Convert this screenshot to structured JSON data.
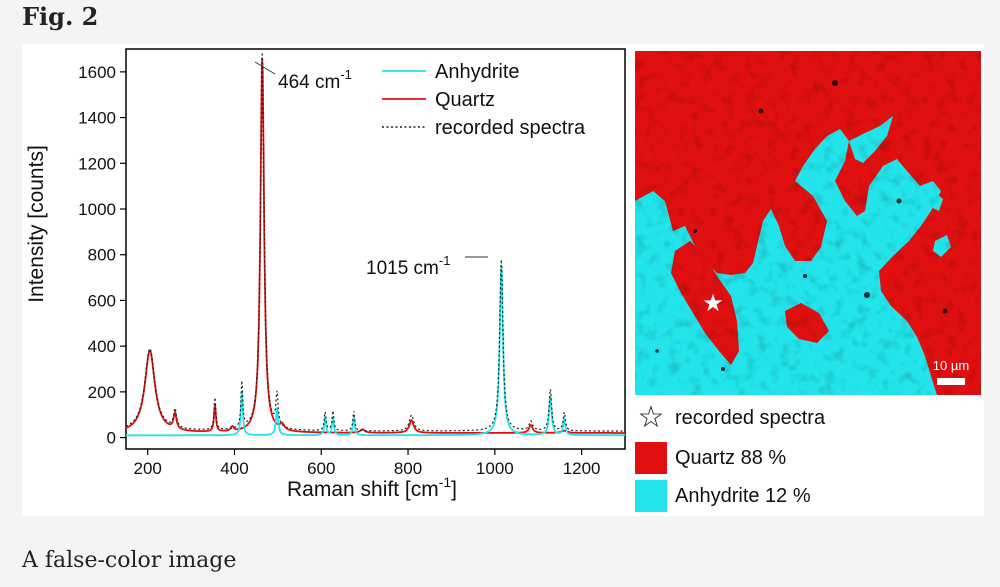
{
  "figure_label": "Fig. 2",
  "caption": "A false-color image",
  "colors": {
    "quartz": "#e01010",
    "anhydrite": "#22e4ea",
    "recorded": "#222222"
  },
  "chart_data": {
    "type": "line",
    "title": "",
    "xlabel": "Raman shift [cm",
    "xlabel_sup": "-1",
    "xlabel_tail": "]",
    "ylabel": "Intensity [counts]",
    "xlim": [
      150,
      1300
    ],
    "ylim": [
      -50,
      1700
    ],
    "xticks": [
      200,
      400,
      600,
      800,
      1000,
      1200
    ],
    "yticks": [
      0,
      200,
      400,
      600,
      800,
      1000,
      1200,
      1400,
      1600
    ],
    "legend_position": "top-right",
    "legend": [
      "Anhydrite",
      "Quartz",
      "recorded spectra"
    ],
    "annotations": [
      {
        "text": "464 cm",
        "sup": "-1",
        "x": 464,
        "y": 1660
      },
      {
        "text": "1015 cm",
        "sup": "-1",
        "x": 1015,
        "y": 750
      }
    ],
    "series": [
      {
        "name": "Quartz",
        "color": "#e01010",
        "baseline": 20,
        "peaks": [
          [
            205,
            360,
            14
          ],
          [
            263,
            70,
            4
          ],
          [
            355,
            120,
            2.5
          ],
          [
            395,
            20,
            4
          ],
          [
            464,
            1640,
            5
          ],
          [
            510,
            25,
            6
          ],
          [
            695,
            15,
            6
          ],
          [
            808,
            55,
            6
          ],
          [
            1083,
            35,
            5
          ],
          [
            1160,
            10,
            8
          ]
        ]
      },
      {
        "name": "Anhydrite",
        "color": "#22e4ea",
        "baseline": 10,
        "peaks": [
          [
            415,
            15,
            4
          ],
          [
            417,
            180,
            2.5
          ],
          [
            498,
            120,
            3
          ],
          [
            609,
            80,
            2.5
          ],
          [
            627,
            80,
            2.5
          ],
          [
            675,
            80,
            2.5
          ],
          [
            1015,
            740,
            4.5
          ],
          [
            1128,
            170,
            3.5
          ],
          [
            1160,
            70,
            3
          ]
        ]
      },
      {
        "name": "recorded spectra",
        "color": "#222222",
        "baseline": 28,
        "peaks": [
          [
            205,
            360,
            14
          ],
          [
            263,
            80,
            4
          ],
          [
            355,
            140,
            2.5
          ],
          [
            417,
            200,
            2.5
          ],
          [
            464,
            1655,
            5
          ],
          [
            498,
            140,
            3
          ],
          [
            609,
            80,
            2.5
          ],
          [
            627,
            85,
            2.5
          ],
          [
            675,
            85,
            2.5
          ],
          [
            808,
            70,
            6
          ],
          [
            1015,
            750,
            4.5
          ],
          [
            1083,
            40,
            5
          ],
          [
            1128,
            180,
            3.5
          ],
          [
            1160,
            80,
            3
          ]
        ]
      }
    ]
  },
  "map": {
    "scale_label": "10 µm",
    "legend": [
      {
        "symbol": "☆",
        "label": "recorded spectra"
      },
      {
        "label": "Quartz 88 %",
        "color": "#e01010"
      },
      {
        "label": "Anhydrite 12 %",
        "color": "#22e4ea"
      }
    ]
  }
}
